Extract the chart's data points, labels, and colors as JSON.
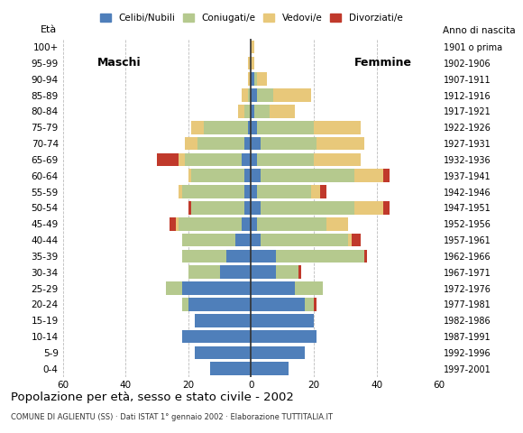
{
  "title": "Popolazione per età, sesso e stato civile - 2002",
  "subtitle": "COMUNE DI AGLIENTU (SS) · Dati ISTAT 1° gennaio 2002 · Elaborazione TUTTITALIA.IT",
  "ylabel_left": "Età",
  "ylabel_right": "Anno di nascita",
  "label_maschi": "Maschi",
  "label_femmine": "Femmine",
  "legend_labels": [
    "Celibi/Nubili",
    "Coniugati/e",
    "Vedovi/e",
    "Divorziati/e"
  ],
  "colors": {
    "celibi": "#4f7fba",
    "coniugati": "#b5c98e",
    "vedovi": "#e8c87a",
    "divorziati": "#c0392b"
  },
  "age_groups": [
    "0-4",
    "5-9",
    "10-14",
    "15-19",
    "20-24",
    "25-29",
    "30-34",
    "35-39",
    "40-44",
    "45-49",
    "50-54",
    "55-59",
    "60-64",
    "65-69",
    "70-74",
    "75-79",
    "80-84",
    "85-89",
    "90-94",
    "95-99",
    "100+"
  ],
  "birth_years": [
    "1997-2001",
    "1992-1996",
    "1987-1991",
    "1982-1986",
    "1977-1981",
    "1972-1976",
    "1967-1971",
    "1962-1966",
    "1957-1961",
    "1952-1956",
    "1947-1951",
    "1942-1946",
    "1937-1941",
    "1932-1936",
    "1927-1931",
    "1922-1926",
    "1917-1921",
    "1912-1916",
    "1907-1911",
    "1902-1906",
    "1901 o prima"
  ],
  "maschi": {
    "celibi": [
      13,
      18,
      22,
      18,
      20,
      22,
      10,
      8,
      5,
      3,
      2,
      2,
      2,
      3,
      2,
      1,
      0,
      0,
      0,
      0,
      0
    ],
    "coniugati": [
      0,
      0,
      0,
      0,
      2,
      5,
      10,
      14,
      17,
      20,
      17,
      20,
      17,
      18,
      15,
      14,
      2,
      1,
      0,
      0,
      0
    ],
    "vedovi": [
      0,
      0,
      0,
      0,
      0,
      0,
      0,
      0,
      0,
      1,
      0,
      1,
      1,
      2,
      4,
      4,
      2,
      2,
      1,
      1,
      0
    ],
    "divorziati": [
      0,
      0,
      0,
      0,
      0,
      0,
      0,
      0,
      0,
      2,
      1,
      0,
      0,
      7,
      0,
      0,
      0,
      0,
      0,
      0,
      0
    ]
  },
  "femmine": {
    "celibi": [
      12,
      17,
      21,
      20,
      17,
      14,
      8,
      8,
      3,
      2,
      3,
      2,
      3,
      2,
      3,
      2,
      1,
      2,
      1,
      0,
      0
    ],
    "coniugati": [
      0,
      0,
      0,
      0,
      3,
      9,
      7,
      28,
      28,
      22,
      30,
      17,
      30,
      18,
      18,
      18,
      5,
      5,
      1,
      0,
      0
    ],
    "vedovi": [
      0,
      0,
      0,
      0,
      0,
      0,
      0,
      0,
      1,
      7,
      9,
      3,
      9,
      15,
      15,
      15,
      8,
      12,
      3,
      1,
      1
    ],
    "divorziati": [
      0,
      0,
      0,
      0,
      1,
      0,
      1,
      1,
      3,
      0,
      2,
      2,
      2,
      0,
      0,
      0,
      0,
      0,
      0,
      0,
      0
    ]
  },
  "xlim": 60,
  "background_color": "#ffffff",
  "grid_color": "#aaaaaa",
  "axis_color": "#333333"
}
